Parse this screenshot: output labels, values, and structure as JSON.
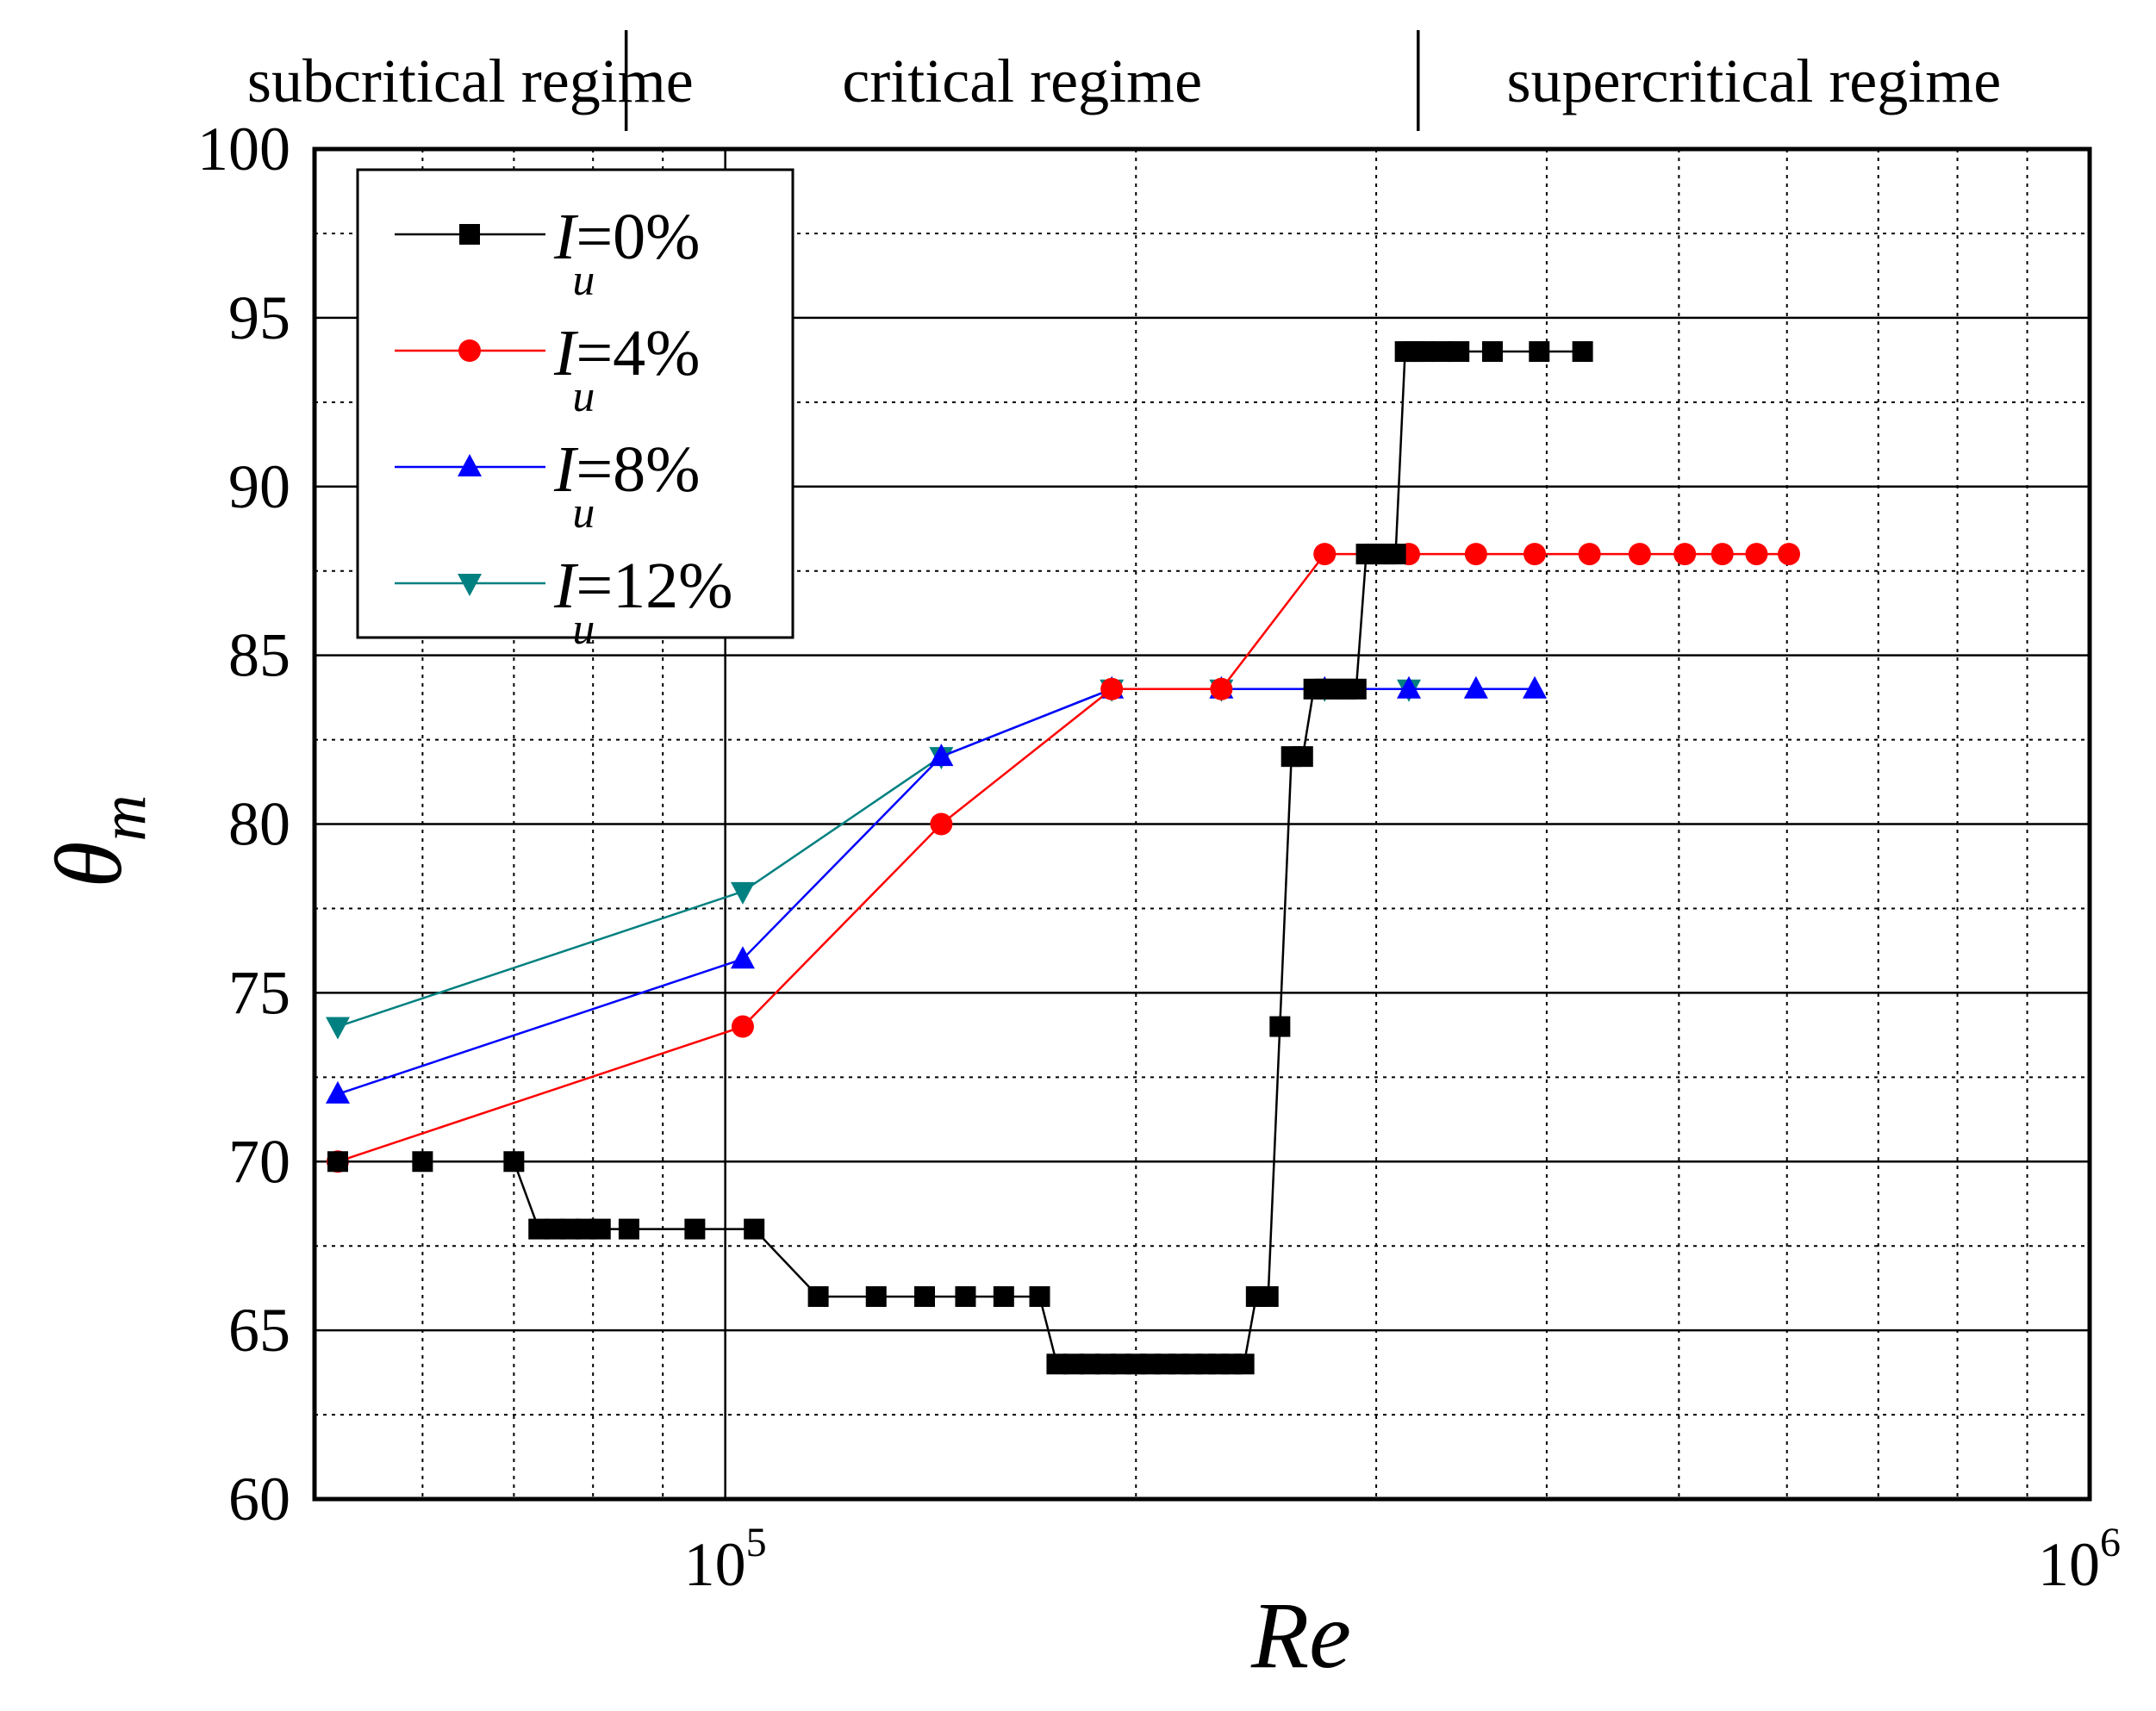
{
  "chart_data": {
    "type": "line",
    "title": "",
    "xlabel": "Re",
    "ylabel": "θm",
    "ylabel_main": "θ",
    "ylabel_sub": "m",
    "xscale": "log",
    "xlim": [
      50000,
      1000000
    ],
    "ylim": [
      60,
      100
    ],
    "yticks": [
      60,
      65,
      70,
      75,
      80,
      85,
      90,
      95,
      100
    ],
    "ytick_labels": [
      "60",
      "65",
      "70",
      "75",
      "80",
      "85",
      "90",
      "95",
      "100"
    ],
    "xticks": [
      {
        "value": 100000,
        "base": "10",
        "exp": "5"
      },
      {
        "value": 1000000,
        "base": "10",
        "exp": "6"
      }
    ],
    "grid": true,
    "legend_position": "top-left",
    "regimes": [
      {
        "label": "subcritical regime",
        "from": 50000,
        "to": 84600
      },
      {
        "label": "critical regime",
        "from": 84600,
        "to": 322000
      },
      {
        "label": "supercritical regime",
        "from": 322000,
        "to": 1000000
      }
    ],
    "series": [
      {
        "name": "Iu=0%",
        "legend_main": "I",
        "legend_sub": "u",
        "legend_value": "=0%",
        "color": "#000000",
        "marker": "square",
        "x": [
          52000,
          60000,
          70000,
          73000,
          75000,
          77000,
          79000,
          81000,
          85000,
          95000,
          105000,
          117000,
          129000,
          140000,
          150000,
          160000,
          170000,
          175000,
          180000,
          185000,
          190000,
          195000,
          200000,
          205000,
          210000,
          215000,
          220000,
          225000,
          230000,
          235000,
          240000,
          245000,
          250000,
          255000,
          260000,
          265000,
          270000,
          275000,
          280000,
          285000,
          290000,
          295000,
          300000,
          305000,
          310000,
          315000,
          320000,
          325000,
          335000,
          345000,
          365000,
          395000,
          425000
        ],
        "y": [
          70,
          70,
          70,
          68,
          68,
          68,
          68,
          68,
          68,
          68,
          68,
          66,
          66,
          66,
          66,
          66,
          66,
          64,
          64,
          64,
          64,
          64,
          64,
          64,
          64,
          64,
          64,
          64,
          64,
          64,
          64,
          66,
          66,
          74,
          82,
          82,
          84,
          84,
          84,
          84,
          84,
          88,
          88,
          88,
          88,
          94,
          94,
          94,
          94,
          94,
          94,
          94,
          94
        ]
      },
      {
        "name": "Iu=4%",
        "legend_main": "I",
        "legend_sub": "u",
        "legend_value": "=4%",
        "color": "#ff0000",
        "marker": "circle",
        "x": [
          52000,
          103000,
          144000,
          192000,
          231000,
          275000,
          317000,
          355000,
          392000,
          430000,
          468000,
          505000,
          538000,
          570000,
          602000
        ],
        "y": [
          70,
          74,
          80,
          84,
          84,
          88,
          88,
          88,
          88,
          88,
          88,
          88,
          88,
          88,
          88
        ]
      },
      {
        "name": "Iu=8%",
        "legend_main": "I",
        "legend_sub": "u",
        "legend_value": "=8%",
        "color": "#0000ff",
        "marker": "triangle-up",
        "x": [
          52000,
          103000,
          144000,
          192000,
          231000,
          275000,
          317000,
          355000,
          392000
        ],
        "y": [
          72,
          76,
          82,
          84,
          84,
          84,
          84,
          84,
          84
        ]
      },
      {
        "name": "Iu=12%",
        "legend_main": "I",
        "legend_sub": "u",
        "legend_value": "=12%",
        "color": "#008080",
        "marker": "triangle-down",
        "x": [
          52000,
          103000,
          144000,
          192000,
          231000,
          275000,
          317000
        ],
        "y": [
          74,
          78,
          82,
          84,
          84,
          84,
          84
        ]
      }
    ]
  }
}
